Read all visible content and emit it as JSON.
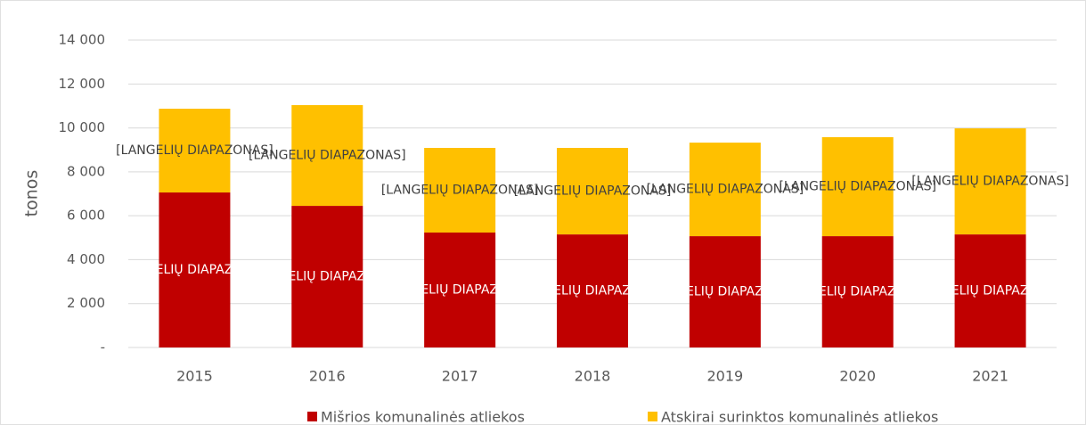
{
  "chart_data": {
    "type": "stacked_bar",
    "y_label": "tonos",
    "categories": [
      "2015",
      "2016",
      "2017",
      "2018",
      "2019",
      "2020",
      "2021"
    ],
    "series": [
      {
        "name": "Mišrios komunalinės atliekos",
        "color": "#c00000",
        "values": [
          7060,
          6450,
          5235,
          5150,
          5070,
          5070,
          5150
        ],
        "value_labels": [
          "[LANGELIŲ DIAPAZONAS]",
          "[LANGELIŲ DIAPAZONAS]",
          "[LANGELIŲ DIAPAZONAS]",
          "[LANGELIŲ DIAPAZONAS]",
          "[LANGELIŲ DIAPAZONAS]",
          "[LANGELIŲ DIAPAZONAS]",
          "[LANGELIŲ DIAPAZONAS]"
        ]
      },
      {
        "name": "Atskirai surinktos komunalinės atliekos",
        "color": "#ffc000",
        "values": [
          3815,
          4590,
          3855,
          3940,
          4260,
          4510,
          4830
        ],
        "value_labels": [
          "[LANGELIŲ DIAPAZONAS]",
          "[LANGELIŲ DIAPAZONAS]",
          "[LANGELIŲ DIAPAZONAS]",
          "[LANGELIŲ DIAPAZONAS]",
          "[LANGELIŲ DIAPAZONAS]",
          "[LANGELIŲ DIAPAZONAS]",
          "[LANGELIŲ DIAPAZONAS]"
        ]
      }
    ],
    "ylim": [
      0,
      14000
    ],
    "yticks": [
      {
        "value": 0,
        "label": "-"
      },
      {
        "value": 2000,
        "label": "2 000"
      },
      {
        "value": 4000,
        "label": "4 000"
      },
      {
        "value": 6000,
        "label": "6 000"
      },
      {
        "value": 8000,
        "label": "8 000"
      },
      {
        "value": 10000,
        "label": "10 000"
      },
      {
        "value": 12000,
        "label": "12 000"
      },
      {
        "value": 14000,
        "label": "14 000"
      }
    ],
    "grid": true,
    "legend": "bottom"
  }
}
